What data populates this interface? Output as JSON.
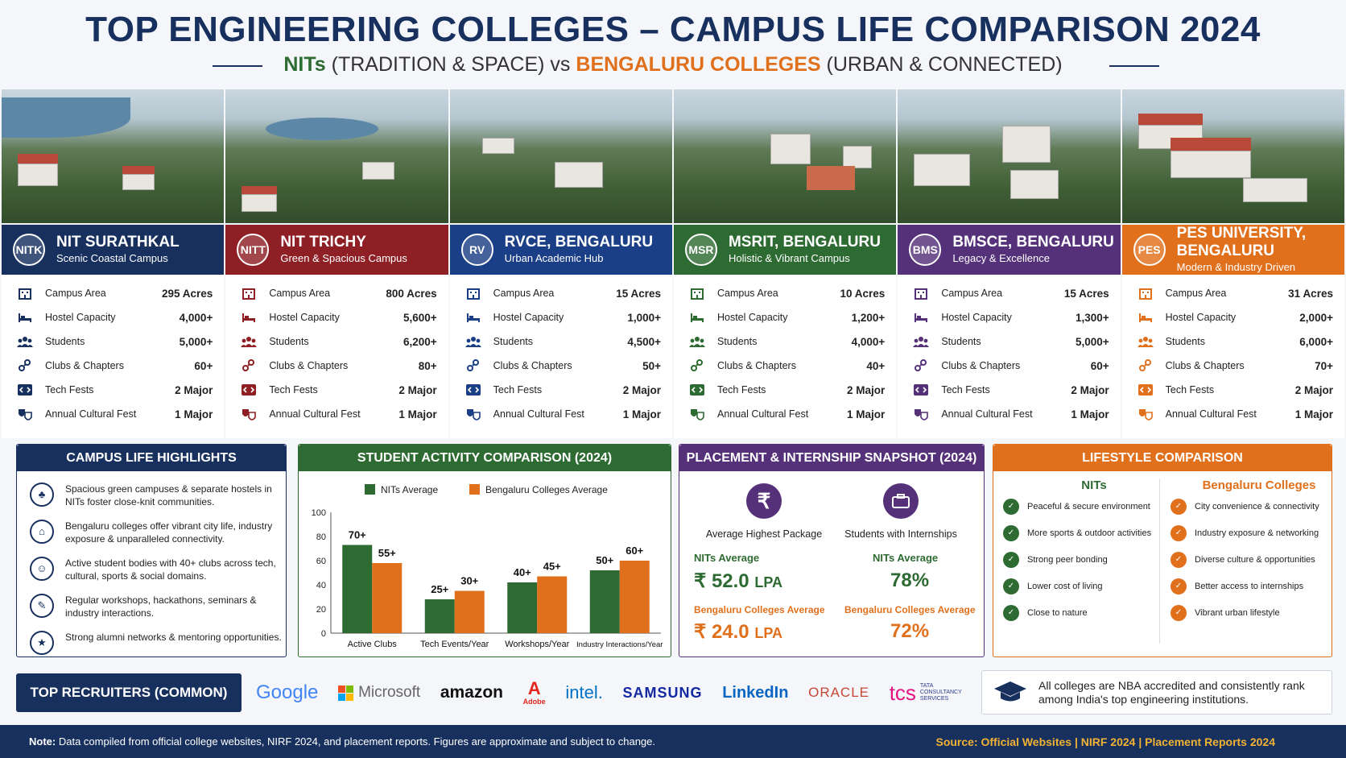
{
  "header": {
    "title": "TOP ENGINEERING COLLEGES – CAMPUS LIFE COMPARISON 2024",
    "subtitle_nits": "NITs",
    "subtitle_mid": "(TRADITION & SPACE) vs",
    "subtitle_blr": "BENGALURU COLLEGES",
    "subtitle_end": "(URBAN & CONNECTED)"
  },
  "row_labels": [
    "Campus Area",
    "Hostel Capacity",
    "Students",
    "Clubs & Chapters",
    "Tech Fests",
    "Annual Cultural Fest"
  ],
  "colleges": [
    {
      "name": "NIT SURATHKAL",
      "tagline": "Scenic Coastal Campus",
      "logo": "NITK",
      "color": "#17305e",
      "values": [
        "295 Acres",
        "4,000+",
        "5,000+",
        "60+",
        "2 Major",
        "1 Major"
      ]
    },
    {
      "name": "NIT TRICHY",
      "tagline": "Green & Spacious Campus",
      "logo": "NITT",
      "color": "#8e1f24",
      "values": [
        "800 Acres",
        "5,600+",
        "6,200+",
        "80+",
        "2 Major",
        "1 Major"
      ]
    },
    {
      "name": "RVCE, BENGALURU",
      "tagline": "Urban Academic Hub",
      "logo": "RV",
      "color": "#1b3f86",
      "values": [
        "15 Acres",
        "1,000+",
        "4,500+",
        "50+",
        "2 Major",
        "1 Major"
      ]
    },
    {
      "name": "MSRIT, BENGALURU",
      "tagline": "Holistic & Vibrant Campus",
      "logo": "MSR",
      "color": "#2e6b32",
      "values": [
        "10 Acres",
        "1,200+",
        "4,000+",
        "40+",
        "2 Major",
        "1 Major"
      ]
    },
    {
      "name": "BMSCE, BENGALURU",
      "tagline": "Legacy & Excellence",
      "logo": "BMS",
      "color": "#553179",
      "values": [
        "15 Acres",
        "1,300+",
        "5,000+",
        "60+",
        "2 Major",
        "1 Major"
      ]
    },
    {
      "name": "PES UNIVERSITY, BENGALURU",
      "tagline": "Modern & Industry Driven",
      "logo": "PES",
      "color": "#e0701c",
      "values": [
        "31 Acres",
        "2,000+",
        "6,000+",
        "70+",
        "2 Major",
        "1 Major"
      ]
    }
  ],
  "highlights": {
    "title": "CAMPUS LIFE HIGHLIGHTS",
    "items": [
      "Spacious green campuses & separate hostels in NITs foster close-knit communities.",
      "Bengaluru colleges offer vibrant city life, industry exposure & unparalleled connectivity.",
      "Active student bodies with 40+ clubs across tech, cultural, sports & social domains.",
      "Regular workshops, hackathons, seminars & industry interactions.",
      "Strong alumni networks & mentoring opportunities."
    ]
  },
  "chart_data": {
    "type": "bar",
    "title": "STUDENT ACTIVITY COMPARISON (2024)",
    "categories": [
      "Active Clubs",
      "Tech Events/Year",
      "Workshops/Year",
      "Industry Interactions/Year"
    ],
    "series": [
      {
        "name": "NITs Average",
        "values": [
          73,
          28,
          42,
          52
        ],
        "labels": [
          "70+",
          "25+",
          "40+",
          "50+"
        ],
        "color": "#2e6b32"
      },
      {
        "name": "Bengaluru Colleges Average",
        "values": [
          58,
          35,
          47,
          60
        ],
        "labels": [
          "55+",
          "30+",
          "45+",
          "60+"
        ],
        "color": "#e0701c"
      }
    ],
    "ylim": [
      0,
      100
    ],
    "yticks": [
      "0",
      "20",
      "40",
      "60",
      "80",
      "100"
    ],
    "legend": "top"
  },
  "placement": {
    "title": "PLACEMENT & INTERNSHIP SNAPSHOT (2024)",
    "package_label": "Average Highest Package",
    "intern_label": "Students with Internships",
    "nits_label": "NITs Average",
    "blr_label": "Bengaluru Colleges Average",
    "nits_package": "₹ 52.0",
    "blr_package": "₹ 24.0",
    "unit": "LPA",
    "nits_intern": "78%",
    "blr_intern": "72%",
    "rupee_icon": "₹"
  },
  "lifestyle": {
    "title": "LIFESTYLE COMPARISON",
    "nits_head": "NITs",
    "blr_head": "Bengaluru Colleges",
    "nits": [
      "Peaceful & secure environment",
      "More sports & outdoor activities",
      "Strong peer bonding",
      "Lower cost of living",
      "Close to nature"
    ],
    "blr": [
      "City convenience & connectivity",
      "Industry exposure & networking",
      "Diverse culture & opportunities",
      "Better access to internships",
      "Vibrant urban lifestyle"
    ]
  },
  "recruiters": {
    "label": "TOP RECRUITERS (COMMON)",
    "companies": [
      "Google",
      "Microsoft",
      "amazon",
      "Adobe",
      "intel.",
      "SAMSUNG",
      "LinkedIn",
      "ORACLE",
      "TCS"
    ],
    "tcs_sub": "TATA CONSULTANCY SERVICES"
  },
  "nba_note": "All colleges are NBA accredited and consistently rank among India's top engineering institutions.",
  "footer": {
    "note_label": "Note:",
    "note": "Data compiled from official college websites, NIRF 2024, and placement reports. Figures are approximate and subject to change.",
    "source": "Source: Official Websites  |  NIRF 2024  |  Placement Reports 2024"
  }
}
